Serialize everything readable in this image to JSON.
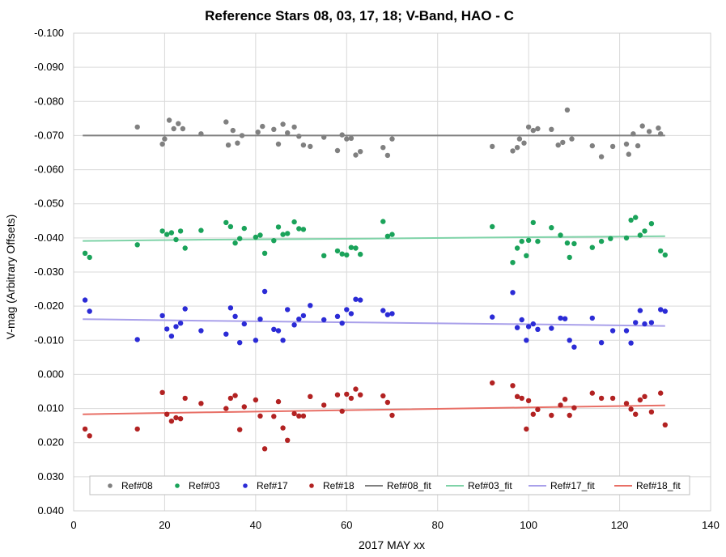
{
  "chart_data": {
    "type": "scatter",
    "title": "Reference Stars 08, 03, 17, 18; V-Band, HAO - C",
    "xlabel": "2017 MAY xx",
    "ylabel": "V-mag (Arbitrary Offsets)",
    "xlim": [
      0,
      140
    ],
    "ylim": [
      0.04,
      -0.1
    ],
    "y_reversed": true,
    "x_ticks": [
      0,
      20,
      40,
      60,
      80,
      100,
      120,
      140
    ],
    "y_ticks": [
      -0.1,
      -0.09,
      -0.08,
      -0.07,
      -0.06,
      -0.05,
      -0.04,
      -0.03,
      -0.02,
      -0.01,
      0.0,
      0.01,
      0.02,
      0.03,
      0.04
    ],
    "y_tick_labels": [
      "-0.100",
      "-0.090",
      "-0.080",
      "-0.070",
      "-0.060",
      "-0.050",
      "-0.040",
      "-0.030",
      "-0.020",
      "-0.010",
      "0.000",
      "0.010",
      "0.020",
      "0.030",
      "0.040"
    ],
    "x_tick_labels": [
      "0",
      "20",
      "40",
      "60",
      "80",
      "100",
      "120",
      "140"
    ],
    "grid": true,
    "legend_position": "bottom",
    "series": [
      {
        "name": "Ref#08",
        "kind": "points",
        "color": "#808080",
        "x": [
          14,
          19.5,
          20,
          21,
          22,
          23,
          24,
          28,
          33.5,
          34,
          35,
          36,
          37,
          40.5,
          41.5,
          44,
          45,
          46,
          47,
          48.5,
          49.5,
          50.5,
          52,
          55,
          58,
          59,
          60,
          61,
          62,
          63,
          68,
          69,
          70,
          92,
          96.5,
          97.5,
          98,
          99,
          100,
          101,
          102,
          105,
          106.5,
          107.5,
          108.5,
          109.5,
          114,
          116,
          118.5,
          121.5,
          122,
          123,
          124,
          125,
          126.5,
          128.5,
          129
        ],
        "y": [
          -0.0725,
          -0.0675,
          -0.069,
          -0.0745,
          -0.072,
          -0.0735,
          -0.072,
          -0.0705,
          -0.074,
          -0.0672,
          -0.0715,
          -0.0678,
          -0.07,
          -0.071,
          -0.0727,
          -0.0718,
          -0.0675,
          -0.0733,
          -0.0708,
          -0.0725,
          -0.0698,
          -0.0672,
          -0.0668,
          -0.0695,
          -0.0656,
          -0.0702,
          -0.069,
          -0.0692,
          -0.0643,
          -0.0653,
          -0.0665,
          -0.0642,
          -0.069,
          -0.0668,
          -0.0655,
          -0.0665,
          -0.069,
          -0.0678,
          -0.0725,
          -0.0715,
          -0.072,
          -0.0718,
          -0.0672,
          -0.068,
          -0.0775,
          -0.069,
          -0.067,
          -0.0638,
          -0.0668,
          -0.0675,
          -0.0645,
          -0.0705,
          -0.067,
          -0.0728,
          -0.0712,
          -0.0722,
          -0.0705
        ]
      },
      {
        "name": "Ref#03",
        "kind": "points",
        "color": "#1aa35a",
        "x": [
          2.5,
          3.5,
          14,
          19.5,
          20.5,
          21.5,
          22.5,
          23.5,
          24.5,
          28,
          33.5,
          34.5,
          35.5,
          36.5,
          37.5,
          40,
          41,
          42,
          44,
          45,
          46,
          47,
          48.5,
          49.5,
          50.5,
          55,
          58,
          59,
          60,
          61,
          62,
          63,
          68,
          69,
          70,
          92,
          96.5,
          97.5,
          98.5,
          99.5,
          100,
          101,
          102,
          105,
          107,
          108.5,
          109,
          110,
          114,
          116,
          118,
          121.5,
          122.5,
          123.5,
          124.5,
          125.5,
          127,
          129,
          130
        ],
        "y": [
          -0.0355,
          -0.0343,
          -0.038,
          -0.042,
          -0.041,
          -0.0415,
          -0.0395,
          -0.042,
          -0.037,
          -0.0422,
          -0.0445,
          -0.0433,
          -0.0385,
          -0.0398,
          -0.0428,
          -0.0402,
          -0.0408,
          -0.0355,
          -0.0392,
          -0.0432,
          -0.041,
          -0.0413,
          -0.0447,
          -0.0427,
          -0.0425,
          -0.0348,
          -0.0362,
          -0.0353,
          -0.035,
          -0.0372,
          -0.037,
          -0.0352,
          -0.0448,
          -0.0405,
          -0.041,
          -0.0433,
          -0.0328,
          -0.037,
          -0.039,
          -0.0348,
          -0.0393,
          -0.0445,
          -0.039,
          -0.043,
          -0.0408,
          -0.0385,
          -0.0343,
          -0.0383,
          -0.0372,
          -0.039,
          -0.0398,
          -0.04,
          -0.0452,
          -0.046,
          -0.0408,
          -0.042,
          -0.0442,
          -0.0362,
          -0.035
        ]
      },
      {
        "name": "Ref#17",
        "kind": "points",
        "color": "#2b2bd6",
        "x": [
          2.5,
          3.5,
          14,
          19.5,
          20.5,
          21.5,
          22.5,
          23.5,
          24.5,
          28,
          33.5,
          34.5,
          35.5,
          36.5,
          37.5,
          40,
          41,
          42,
          44,
          45,
          46,
          47,
          48.5,
          49.5,
          50.5,
          52,
          55,
          58,
          59,
          60,
          61,
          62,
          63,
          68,
          69,
          70,
          92,
          96.5,
          97.5,
          98.5,
          99.5,
          100,
          101,
          102,
          105,
          107,
          108,
          109,
          110,
          114,
          116,
          118.5,
          121.5,
          122.5,
          123.5,
          124.5,
          125.5,
          127,
          129,
          130
        ],
        "y": [
          -0.0218,
          -0.0185,
          -0.0102,
          -0.0172,
          -0.0133,
          -0.0112,
          -0.014,
          -0.015,
          -0.0192,
          -0.0128,
          -0.0118,
          -0.0195,
          -0.017,
          -0.0093,
          -0.0148,
          -0.01,
          -0.0162,
          -0.0243,
          -0.0132,
          -0.0128,
          -0.01,
          -0.019,
          -0.0145,
          -0.0162,
          -0.0172,
          -0.0202,
          -0.016,
          -0.017,
          -0.015,
          -0.019,
          -0.0178,
          -0.022,
          -0.0218,
          -0.0187,
          -0.0175,
          -0.0178,
          -0.0168,
          -0.024,
          -0.0137,
          -0.016,
          -0.01,
          -0.014,
          -0.0148,
          -0.0132,
          -0.0135,
          -0.0165,
          -0.0163,
          -0.01,
          -0.008,
          -0.0165,
          -0.0093,
          -0.0128,
          -0.0128,
          -0.0092,
          -0.0152,
          -0.0187,
          -0.0148,
          -0.0152,
          -0.019,
          -0.0185
        ]
      },
      {
        "name": "Ref#18",
        "kind": "points",
        "color": "#b22222",
        "x": [
          2.5,
          3.5,
          14,
          19.5,
          20.5,
          21.5,
          22.5,
          23.5,
          24.5,
          28,
          33.5,
          34.5,
          35.5,
          36.5,
          37.5,
          40,
          41,
          42,
          44,
          45,
          46,
          47,
          48.5,
          49.5,
          50.5,
          52,
          55,
          58,
          59,
          60,
          61,
          62,
          63,
          68,
          69,
          70,
          92,
          96.5,
          97.5,
          98.5,
          99.5,
          100,
          101,
          102,
          105,
          107,
          108,
          109,
          110,
          114,
          116,
          118.5,
          121.5,
          122.5,
          123.5,
          124.5,
          125.5,
          127,
          129,
          130
        ],
        "y": [
          0.016,
          0.018,
          0.016,
          0.0053,
          0.0117,
          0.0137,
          0.0127,
          0.013,
          0.007,
          0.0085,
          0.01,
          0.007,
          0.0062,
          0.0162,
          0.0095,
          0.0075,
          0.0122,
          0.0218,
          0.0123,
          0.008,
          0.0157,
          0.0193,
          0.0115,
          0.0122,
          0.0122,
          0.0065,
          0.009,
          0.006,
          0.0108,
          0.0058,
          0.007,
          0.0043,
          0.006,
          0.0063,
          0.0082,
          0.012,
          0.0025,
          0.0033,
          0.0065,
          0.007,
          0.016,
          0.0077,
          0.0117,
          0.0103,
          0.012,
          0.009,
          0.0073,
          0.012,
          0.0098,
          0.0055,
          0.007,
          0.007,
          0.0085,
          0.0102,
          0.0117,
          0.0075,
          0.0065,
          0.011,
          0.0055,
          0.0148
        ]
      },
      {
        "name": "Ref#08_fit",
        "kind": "line",
        "color": "#808080",
        "x": [
          2,
          130
        ],
        "y": [
          -0.07,
          -0.07
        ]
      },
      {
        "name": "Ref#03_fit",
        "kind": "line",
        "color": "#7fd3a8",
        "x": [
          2,
          30,
          65,
          100,
          130
        ],
        "y": [
          -0.0391,
          -0.0395,
          -0.0398,
          -0.0402,
          -0.0405
        ]
      },
      {
        "name": "Ref#17_fit",
        "kind": "line",
        "color": "#a9a0ea",
        "x": [
          2,
          30,
          65,
          100,
          130
        ],
        "y": [
          -0.0162,
          -0.0157,
          -0.0152,
          -0.0147,
          -0.0142
        ]
      },
      {
        "name": "Ref#18_fit",
        "kind": "line",
        "color": "#e86f66",
        "x": [
          2,
          30,
          65,
          100,
          130
        ],
        "y": [
          0.0117,
          0.0111,
          0.0104,
          0.0097,
          0.0091
        ]
      }
    ]
  }
}
